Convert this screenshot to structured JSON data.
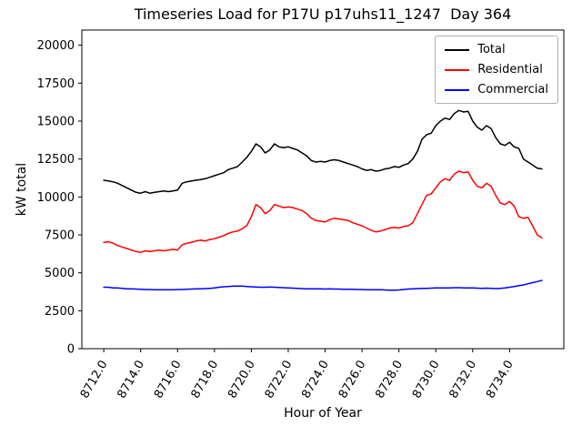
{
  "figure": {
    "title": "Timeseries Load for P17U p17uhs11_1247  Day 364",
    "xlabel": "Hour of Year",
    "ylabel": "kW total"
  },
  "chart_data": {
    "type": "line",
    "title": "Timeseries Load for P17U p17uhs11_1247  Day 364",
    "xlabel": "Hour of Year",
    "ylabel": "kW total",
    "grid": false,
    "legend_position": "upper right",
    "xlim": [
      8710.81,
      8736.94
    ],
    "ylim": [
      0,
      21000
    ],
    "xtick_values": [
      8712,
      8714,
      8716,
      8718,
      8720,
      8722,
      8724,
      8726,
      8728,
      8730,
      8732,
      8734
    ],
    "xtick_labels": [
      "8712.0",
      "8714.0",
      "8716.0",
      "8718.0",
      "8720.0",
      "8722.0",
      "8724.0",
      "8726.0",
      "8728.0",
      "8730.0",
      "8732.0",
      "8734.0"
    ],
    "ytick_values": [
      0,
      2500,
      5000,
      7500,
      10000,
      12500,
      15000,
      17500,
      20000
    ],
    "x": [
      8712.0,
      8712.25,
      8712.5,
      8712.75,
      8713.0,
      8713.25,
      8713.5,
      8713.75,
      8714.0,
      8714.25,
      8714.5,
      8714.75,
      8715.0,
      8715.25,
      8715.5,
      8715.75,
      8716.0,
      8716.25,
      8716.5,
      8716.75,
      8717.0,
      8717.25,
      8717.5,
      8717.75,
      8718.0,
      8718.25,
      8718.5,
      8718.75,
      8719.0,
      8719.25,
      8719.5,
      8719.75,
      8720.0,
      8720.25,
      8720.5,
      8720.75,
      8721.0,
      8721.25,
      8721.5,
      8721.75,
      8722.0,
      8722.25,
      8722.5,
      8722.75,
      8723.0,
      8723.25,
      8723.5,
      8723.75,
      8724.0,
      8724.25,
      8724.5,
      8724.75,
      8725.0,
      8725.25,
      8725.5,
      8725.75,
      8726.0,
      8726.25,
      8726.5,
      8726.75,
      8727.0,
      8727.25,
      8727.5,
      8727.75,
      8728.0,
      8728.25,
      8728.5,
      8728.75,
      8729.0,
      8729.25,
      8729.5,
      8729.75,
      8730.0,
      8730.25,
      8730.5,
      8730.75,
      8731.0,
      8731.25,
      8731.5,
      8731.75,
      8732.0,
      8732.25,
      8732.5,
      8732.75,
      8733.0,
      8733.25,
      8733.5,
      8733.75,
      8734.0,
      8734.25,
      8734.5,
      8734.75,
      8735.0,
      8735.25,
      8735.5,
      8735.75
    ],
    "series": [
      {
        "name": "Total",
        "color": "#000000",
        "values": [
          11100,
          11050,
          11000,
          10900,
          10750,
          10600,
          10450,
          10300,
          10250,
          10350,
          10250,
          10300,
          10350,
          10400,
          10350,
          10400,
          10450,
          10900,
          11000,
          11050,
          11100,
          11150,
          11200,
          11300,
          11400,
          11500,
          11600,
          11800,
          11900,
          12000,
          12300,
          12600,
          13000,
          13500,
          13300,
          12900,
          13100,
          13500,
          13300,
          13250,
          13300,
          13200,
          13100,
          12900,
          12700,
          12400,
          12300,
          12350,
          12300,
          12400,
          12450,
          12400,
          12300,
          12200,
          12100,
          12000,
          11850,
          11750,
          11800,
          11700,
          11750,
          11850,
          11900,
          12000,
          11950,
          12100,
          12200,
          12500,
          13000,
          13800,
          14100,
          14200,
          14700,
          15000,
          15200,
          15100,
          15500,
          15700,
          15600,
          15650,
          15000,
          14600,
          14400,
          14700,
          14500,
          13900,
          13500,
          13400,
          13600,
          13300,
          13200,
          12500,
          12300,
          12100,
          11900,
          11850
        ]
      },
      {
        "name": "Residential",
        "color": "#ff0000",
        "values": [
          7000,
          7050,
          6950,
          6800,
          6700,
          6600,
          6500,
          6400,
          6350,
          6450,
          6400,
          6450,
          6500,
          6450,
          6500,
          6550,
          6500,
          6850,
          6950,
          7000,
          7100,
          7150,
          7100,
          7200,
          7250,
          7350,
          7450,
          7600,
          7700,
          7750,
          7900,
          8100,
          8700,
          9500,
          9300,
          8900,
          9100,
          9500,
          9400,
          9300,
          9350,
          9300,
          9200,
          9100,
          8900,
          8600,
          8450,
          8400,
          8350,
          8500,
          8600,
          8550,
          8500,
          8450,
          8300,
          8200,
          8100,
          7950,
          7800,
          7700,
          7750,
          7850,
          7950,
          8000,
          7950,
          8050,
          8100,
          8300,
          8900,
          9500,
          10100,
          10200,
          10600,
          11000,
          11200,
          11100,
          11500,
          11700,
          11600,
          11650,
          11100,
          10700,
          10600,
          10900,
          10700,
          10100,
          9600,
          9500,
          9700,
          9400,
          8700,
          8600,
          8650,
          8100,
          7500,
          7300
        ]
      },
      {
        "name": "Commercial",
        "color": "#0000ff",
        "values": [
          4050,
          4050,
          4000,
          4000,
          3980,
          3950,
          3950,
          3930,
          3920,
          3900,
          3900,
          3890,
          3880,
          3890,
          3880,
          3890,
          3900,
          3900,
          3920,
          3930,
          3940,
          3950,
          3960,
          3980,
          4000,
          4050,
          4080,
          4100,
          4120,
          4130,
          4120,
          4100,
          4080,
          4060,
          4050,
          4050,
          4060,
          4050,
          4040,
          4020,
          4000,
          3990,
          3980,
          3960,
          3950,
          3950,
          3940,
          3940,
          3930,
          3940,
          3930,
          3930,
          3920,
          3920,
          3910,
          3900,
          3900,
          3890,
          3890,
          3880,
          3880,
          3870,
          3860,
          3850,
          3870,
          3900,
          3930,
          3950,
          3960,
          3970,
          3980,
          3990,
          4000,
          4000,
          4010,
          4010,
          4020,
          4020,
          4010,
          4000,
          4000,
          3990,
          3980,
          3990,
          3970,
          3960,
          3980,
          4000,
          4050,
          4100,
          4150,
          4200,
          4280,
          4350,
          4420,
          4500
        ]
      }
    ]
  }
}
